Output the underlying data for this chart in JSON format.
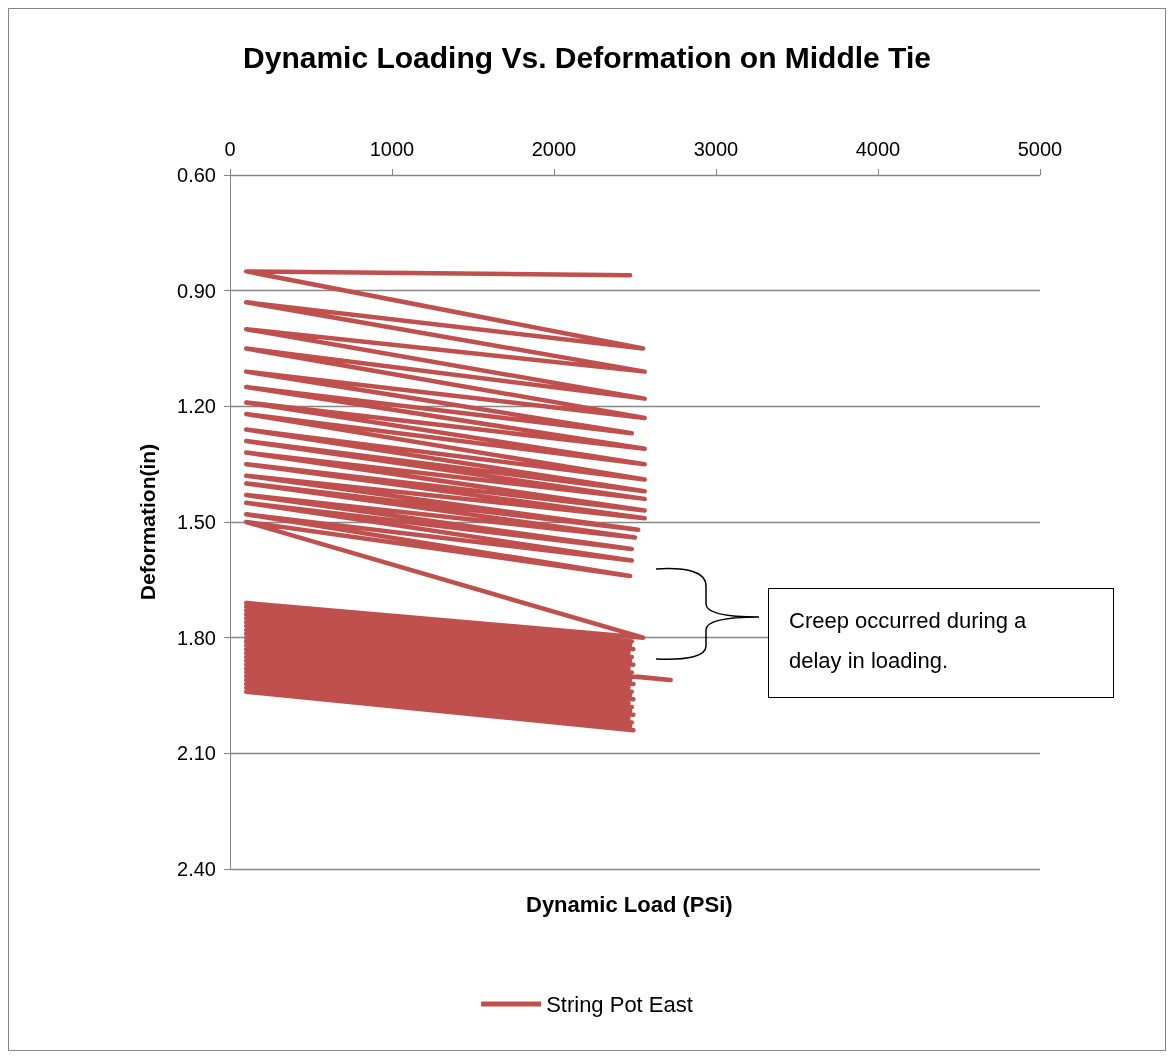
{
  "chart_data": {
    "type": "line",
    "title": "Dynamic Loading Vs. Deformation on Middle Tie",
    "xlabel": "Dynamic Load (PSi)",
    "ylabel": "Deformation(in)",
    "annotations": [
      "Creep occurred during a delay in loading."
    ],
    "xlim": [
      0,
      5000
    ],
    "xticks": [
      0,
      1000,
      2000,
      3000,
      4000,
      5000
    ],
    "ylim": [
      2.4,
      0.6
    ],
    "yticks": [
      {
        "value": 0.6,
        "label": "0.60"
      },
      {
        "value": 0.9,
        "label": "0.90"
      },
      {
        "value": 1.2,
        "label": "1.20"
      },
      {
        "value": 1.5,
        "label": "1.50"
      },
      {
        "value": 1.8,
        "label": "1.80"
      },
      {
        "value": 2.1,
        "label": "2.10"
      },
      {
        "value": 2.4,
        "label": "2.40"
      }
    ],
    "grid": "y",
    "legend": "bottom",
    "marker": "none",
    "line_style": "solid",
    "series": [
      {
        "name": "String Pot East",
        "color": "#c0504d",
        "x": [
          2470,
          100,
          2550,
          100,
          2560,
          100,
          2560,
          100,
          2560,
          100,
          2480,
          100,
          2560,
          100,
          2560,
          100,
          2560,
          100,
          2560,
          100,
          2560,
          100,
          2560,
          100,
          2560,
          100,
          2520,
          100,
          2500,
          100,
          2480,
          100,
          2480,
          100,
          2470,
          100,
          2550,
          100,
          2480,
          100,
          2470,
          100,
          2490,
          100,
          2460,
          100,
          2480,
          100,
          2470,
          100,
          2490,
          100,
          2460,
          100,
          2480,
          100,
          2720,
          100,
          2470,
          100,
          2490,
          100,
          2460,
          100,
          2480,
          100,
          2470,
          100,
          2490,
          100,
          2460,
          100,
          2480,
          100,
          2470,
          100,
          2490,
          100,
          2460,
          100,
          2480,
          100,
          2470,
          100,
          2490
        ],
        "values": [
          0.86,
          0.85,
          1.05,
          0.93,
          1.11,
          1.0,
          1.18,
          1.05,
          1.23,
          1.11,
          1.27,
          1.15,
          1.31,
          1.19,
          1.35,
          1.22,
          1.39,
          1.26,
          1.42,
          1.29,
          1.44,
          1.32,
          1.47,
          1.35,
          1.49,
          1.38,
          1.52,
          1.4,
          1.54,
          1.43,
          1.57,
          1.45,
          1.6,
          1.48,
          1.64,
          1.5,
          1.8,
          1.71,
          1.81,
          1.72,
          1.82,
          1.73,
          1.83,
          1.74,
          1.84,
          1.75,
          1.85,
          1.76,
          1.86,
          1.77,
          1.87,
          1.78,
          1.88,
          1.79,
          1.89,
          1.8,
          1.91,
          1.81,
          1.91,
          1.82,
          1.92,
          1.83,
          1.93,
          1.84,
          1.94,
          1.85,
          1.95,
          1.86,
          1.96,
          1.87,
          1.97,
          1.88,
          1.98,
          1.89,
          1.99,
          1.9,
          2.0,
          1.91,
          2.01,
          1.92,
          2.02,
          1.93,
          2.03,
          1.94,
          2.04
        ]
      }
    ]
  }
}
